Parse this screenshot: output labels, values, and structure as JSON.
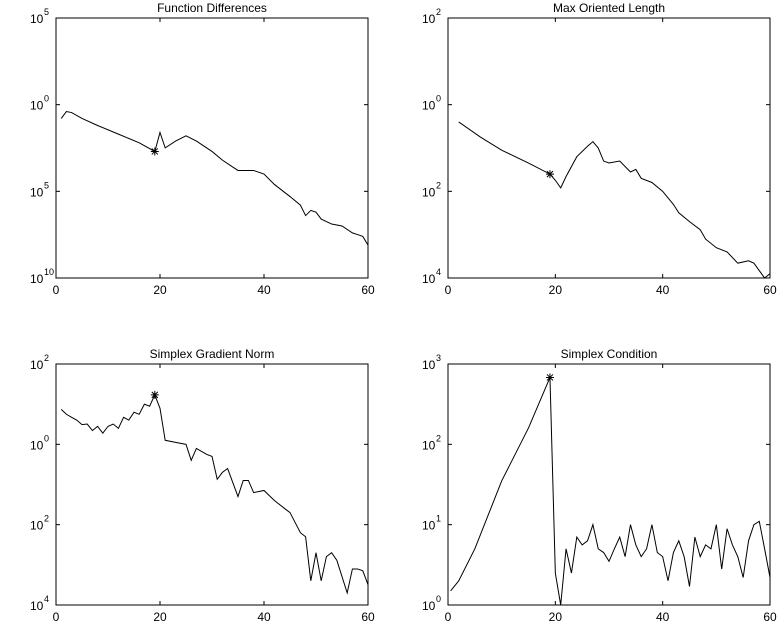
{
  "chart_data": [
    {
      "type": "line",
      "title": "Function Differences",
      "log_y": true,
      "x": [
        1,
        2,
        3,
        5,
        8,
        12,
        16,
        19,
        20,
        21,
        23,
        25,
        27,
        30,
        32,
        34,
        35,
        38,
        40,
        42,
        45,
        47,
        48,
        49,
        50,
        51,
        53,
        55,
        57,
        58,
        59,
        60
      ],
      "series": [
        {
          "color": "#000000",
          "values": [
            0.16,
            0.4,
            0.35,
            0.16,
            0.063,
            0.02,
            0.0063,
            0.002,
            0.025,
            0.0032,
            0.0079,
            0.016,
            0.0079,
            0.002,
            0.00063,
            0.00025,
            0.00016,
            0.00016,
            0.0001,
            2.5e-05,
            5e-06,
            1.6e-06,
            4e-07,
            7.9e-07,
            6.3e-07,
            2.5e-07,
            1.3e-07,
            1e-07,
            4e-08,
            3.2e-08,
            2.5e-08,
            7.9e-09
          ]
        }
      ],
      "highlight": {
        "x": 19,
        "value": 0.002
      },
      "xlim": [
        0,
        60
      ],
      "xticks": [
        0,
        20,
        40,
        60
      ],
      "ylim": [
        1e-10,
        100000
      ],
      "yticks": [
        {
          "value": 100000,
          "label": "10",
          "exponent": "5"
        },
        {
          "value": 1,
          "label": "10",
          "exponent": "0"
        },
        {
          "value": 1e-05,
          "label": "10",
          "exponent": "5"
        },
        {
          "value": 1e-10,
          "label": "10",
          "exponent": "10"
        }
      ]
    },
    {
      "type": "line",
      "title": "Max Oriented Length",
      "log_y": true,
      "x": [
        2,
        6,
        10,
        15,
        19,
        20,
        21,
        22,
        24,
        26,
        27,
        28,
        29,
        30,
        32,
        34,
        35,
        36,
        38,
        40,
        42,
        43,
        45,
        47,
        48,
        50,
        52,
        54,
        56,
        57,
        59,
        60
      ],
      "series": [
        {
          "color": "#000000",
          "values": [
            0.4,
            0.18,
            0.089,
            0.045,
            0.025,
            0.018,
            0.012,
            0.022,
            0.063,
            0.11,
            0.14,
            0.1,
            0.05,
            0.045,
            0.05,
            0.028,
            0.032,
            0.02,
            0.016,
            0.01,
            0.005,
            0.0032,
            0.002,
            0.0013,
            0.00079,
            0.0005,
            0.0004,
            0.00022,
            0.00025,
            0.00022,
            0.0001,
            0.000126
          ]
        }
      ],
      "highlight": {
        "x": 19,
        "value": 0.025
      },
      "xlim": [
        0,
        60
      ],
      "xticks": [
        0,
        20,
        40,
        60
      ],
      "ylim": [
        0.0001,
        100
      ],
      "yticks": [
        {
          "value": 100,
          "label": "10",
          "exponent": "2"
        },
        {
          "value": 1,
          "label": "10",
          "exponent": "0"
        },
        {
          "value": 0.01,
          "label": "10",
          "exponent": "2"
        },
        {
          "value": 0.0001,
          "label": "10",
          "exponent": "4"
        }
      ]
    },
    {
      "type": "line",
      "title": "Simplex Gradient Norm",
      "log_y": true,
      "x": [
        1,
        2,
        3,
        4,
        5,
        6,
        7,
        8,
        9,
        10,
        11,
        12,
        13,
        14,
        15,
        16,
        17,
        18,
        19,
        20,
        21,
        23,
        25,
        26,
        27,
        29,
        30,
        31,
        32,
        33,
        35,
        36,
        37,
        38,
        40,
        42,
        44,
        45,
        47,
        48,
        49,
        50,
        51,
        52,
        53,
        54,
        56,
        57,
        58,
        59,
        60
      ],
      "series": [
        {
          "color": "#000000",
          "values": [
            7.4,
            5.6,
            4.7,
            4,
            3.1,
            3.2,
            2.2,
            2.8,
            1.9,
            2.8,
            3.2,
            2.5,
            4.7,
            4,
            6.3,
            5.6,
            10,
            8.9,
            17,
            7.9,
            1.26,
            1.12,
            1,
            0.4,
            0.79,
            0.56,
            0.5,
            0.135,
            0.2,
            0.25,
            0.05,
            0.126,
            0.126,
            0.063,
            0.071,
            0.04,
            0.025,
            0.02,
            0.0063,
            0.005,
            0.0004,
            0.002,
            0.0004,
            0.0016,
            0.002,
            0.0013,
            0.0002,
            0.00079,
            0.00079,
            0.00071,
            0.00032
          ]
        }
      ],
      "highlight": {
        "x": 19,
        "value": 17
      },
      "xlim": [
        0,
        60
      ],
      "xticks": [
        0,
        20,
        40,
        60
      ],
      "ylim": [
        0.0001,
        100
      ],
      "yticks": [
        {
          "value": 100,
          "label": "10",
          "exponent": "2"
        },
        {
          "value": 1,
          "label": "10",
          "exponent": "0"
        },
        {
          "value": 0.01,
          "label": "10",
          "exponent": "2"
        },
        {
          "value": 0.0001,
          "label": "10",
          "exponent": "4"
        }
      ]
    },
    {
      "type": "line",
      "title": "Simplex Condition",
      "log_y": true,
      "x": [
        0.5,
        2,
        5,
        10,
        15,
        19,
        20,
        21,
        22,
        23,
        24,
        25,
        26,
        27,
        28,
        29,
        30,
        31,
        32,
        33,
        34,
        35,
        36,
        37,
        38,
        39,
        40,
        41,
        42,
        43,
        44,
        45,
        46,
        47,
        48,
        49,
        50,
        51,
        52,
        53,
        54,
        55,
        56,
        57,
        58,
        59,
        60
      ],
      "series": [
        {
          "color": "#000000",
          "values": [
            1.5,
            2,
            5,
            35,
            160,
            680,
            2.5,
            1,
            5,
            2.5,
            7,
            5.6,
            6.3,
            10,
            5,
            4.5,
            3.5,
            5,
            7,
            4,
            10,
            5.6,
            4,
            5,
            10,
            4.5,
            4,
            2,
            4.5,
            6.3,
            4,
            1.7,
            7,
            4,
            5.6,
            5,
            10,
            2.8,
            8.9,
            5.6,
            4,
            2.2,
            6.3,
            10,
            11,
            5,
            2.2
          ]
        }
      ],
      "highlight": {
        "x": 19,
        "value": 680
      },
      "xlim": [
        0,
        60
      ],
      "xticks": [
        0,
        20,
        40,
        60
      ],
      "ylim": [
        1,
        1000
      ],
      "yticks": [
        {
          "value": 1000,
          "label": "10",
          "exponent": "3"
        },
        {
          "value": 100,
          "label": "10",
          "exponent": "2"
        },
        {
          "value": 10,
          "label": "10",
          "exponent": "1"
        },
        {
          "value": 1,
          "label": "10",
          "exponent": "0"
        }
      ]
    }
  ]
}
